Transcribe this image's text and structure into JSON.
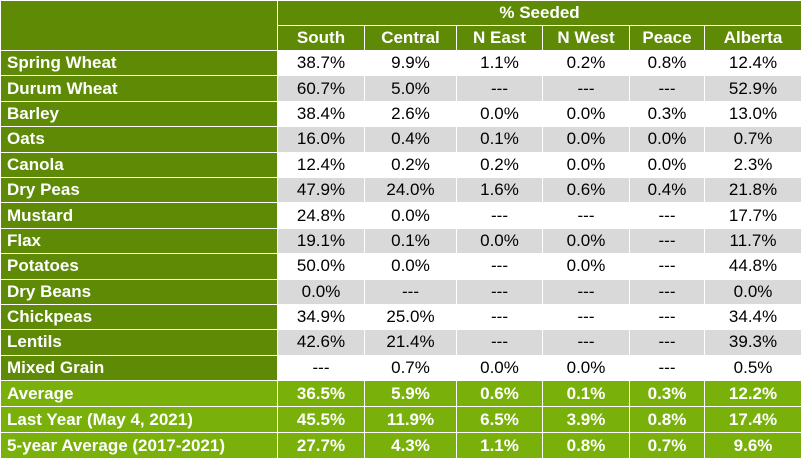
{
  "header": {
    "group_title": "% Seeded",
    "columns": [
      "South",
      "Central",
      "N East",
      "N West",
      "Peace",
      "Alberta"
    ]
  },
  "crops": [
    {
      "name": "Spring Wheat",
      "values": [
        "38.7%",
        "9.9%",
        "1.1%",
        "0.2%",
        "0.8%",
        "12.4%"
      ]
    },
    {
      "name": "Durum Wheat",
      "values": [
        "60.7%",
        "5.0%",
        "---",
        "---",
        "---",
        "52.9%"
      ]
    },
    {
      "name": "Barley",
      "values": [
        "38.4%",
        "2.6%",
        "0.0%",
        "0.0%",
        "0.3%",
        "13.0%"
      ]
    },
    {
      "name": "Oats",
      "values": [
        "16.0%",
        "0.4%",
        "0.1%",
        "0.0%",
        "0.0%",
        "0.7%"
      ]
    },
    {
      "name": "Canola",
      "values": [
        "12.4%",
        "0.2%",
        "0.2%",
        "0.0%",
        "0.0%",
        "2.3%"
      ]
    },
    {
      "name": "Dry Peas",
      "values": [
        "47.9%",
        "24.0%",
        "1.6%",
        "0.6%",
        "0.4%",
        "21.8%"
      ]
    },
    {
      "name": "Mustard",
      "values": [
        "24.8%",
        "0.0%",
        "---",
        "---",
        "---",
        "17.7%"
      ]
    },
    {
      "name": "Flax",
      "values": [
        "19.1%",
        "0.1%",
        "0.0%",
        "0.0%",
        "---",
        "11.7%"
      ]
    },
    {
      "name": "Potatoes",
      "values": [
        "50.0%",
        "0.0%",
        "---",
        "0.0%",
        "---",
        "44.8%"
      ]
    },
    {
      "name": "Dry Beans",
      "values": [
        "0.0%",
        "---",
        "---",
        "---",
        "---",
        "0.0%"
      ]
    },
    {
      "name": "Chickpeas",
      "values": [
        "34.9%",
        "25.0%",
        "---",
        "---",
        "---",
        "34.4%"
      ]
    },
    {
      "name": "Lentils",
      "values": [
        "42.6%",
        "21.4%",
        "---",
        "---",
        "---",
        "39.3%"
      ]
    },
    {
      "name": "Mixed Grain",
      "values": [
        "---",
        "0.7%",
        "0.0%",
        "0.0%",
        "---",
        "0.5%"
      ]
    }
  ],
  "summary": [
    {
      "name": "Average",
      "values": [
        "36.5%",
        "5.9%",
        "0.6%",
        "0.1%",
        "0.3%",
        "12.2%"
      ]
    },
    {
      "name": "Last Year (May 4, 2021)",
      "values": [
        "45.5%",
        "11.9%",
        "6.5%",
        "3.9%",
        "0.8%",
        "17.4%"
      ]
    },
    {
      "name": "5-year Average (2017-2021)",
      "values": [
        "27.7%",
        "4.3%",
        "1.1%",
        "0.8%",
        "0.7%",
        "9.6%"
      ]
    }
  ],
  "colors": {
    "header_dark_green": "#5e8a06",
    "summary_light_green": "#79b10a",
    "row_stripe_gray": "#d9d9d9"
  }
}
